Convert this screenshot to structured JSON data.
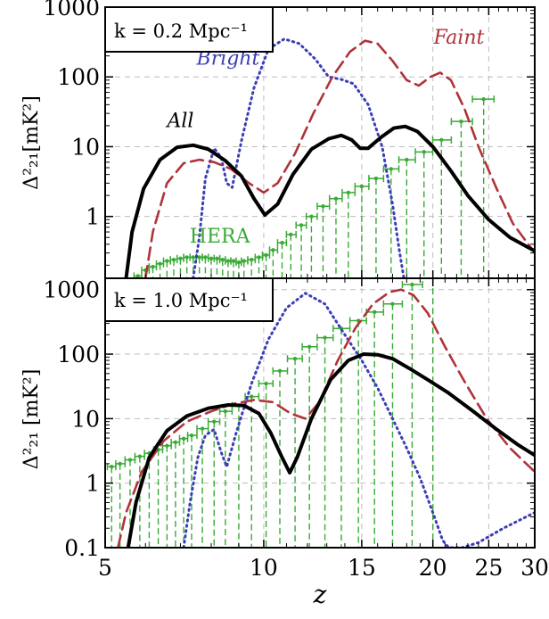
{
  "chart_data": [
    {
      "type": "line",
      "panel": "top",
      "k_label": "k = 0.2 Mpc⁻¹",
      "ylabel": "Δ²₂₁[mK²]",
      "xscale": "log(1+z)",
      "yscale": "log",
      "xlim": [
        5,
        30
      ],
      "ylim": [
        0.13,
        1000
      ],
      "x_ticks": [
        5,
        10,
        15,
        20,
        25,
        30
      ],
      "y_ticks": [
        {
          "value": 1,
          "label": "1"
        },
        {
          "value": 10,
          "label": "10"
        },
        {
          "value": 100,
          "label": "100"
        },
        {
          "value": 1000,
          "label": "1000"
        }
      ],
      "grid": true,
      "series": [
        {
          "name": "Bright",
          "color": "#3b3fb5",
          "style": "dotted",
          "points": [
            [
              7.4,
              0.13
            ],
            [
              7.6,
              0.5
            ],
            [
              7.8,
              3.5
            ],
            [
              8.1,
              9.5
            ],
            [
              8.35,
              7
            ],
            [
              8.55,
              3
            ],
            [
              8.75,
              2.6
            ],
            [
              9.1,
              12
            ],
            [
              9.6,
              70
            ],
            [
              10.2,
              250
            ],
            [
              10.9,
              350
            ],
            [
              11.6,
              300
            ],
            [
              12.4,
              180
            ],
            [
              13.1,
              100
            ],
            [
              13.8,
              92
            ],
            [
              14.5,
              80
            ],
            [
              15.4,
              40
            ],
            [
              16.3,
              10
            ],
            [
              17,
              1.5
            ],
            [
              17.5,
              0.3
            ],
            [
              17.8,
              0.13
            ]
          ]
        },
        {
          "name": "Faint",
          "color": "#b0333a",
          "style": "dashed",
          "points": [
            [
              6.0,
              0.13
            ],
            [
              6.2,
              0.6
            ],
            [
              6.6,
              3
            ],
            [
              7.1,
              5.8
            ],
            [
              7.6,
              6.5
            ],
            [
              8.1,
              6
            ],
            [
              8.7,
              4.8
            ],
            [
              9.4,
              3
            ],
            [
              10,
              2.2
            ],
            [
              10.6,
              3
            ],
            [
              11.4,
              8
            ],
            [
              12.3,
              30
            ],
            [
              13.3,
              100
            ],
            [
              14.3,
              230
            ],
            [
              15.2,
              330
            ],
            [
              16,
              300
            ],
            [
              17,
              170
            ],
            [
              18,
              90
            ],
            [
              18.9,
              75
            ],
            [
              19.8,
              100
            ],
            [
              20.6,
              115
            ],
            [
              21.5,
              90
            ],
            [
              22.7,
              35
            ],
            [
              24,
              10
            ],
            [
              25.8,
              2.5
            ],
            [
              27.5,
              0.8
            ],
            [
              30,
              0.3
            ]
          ]
        },
        {
          "name": "All",
          "color": "#000000",
          "style": "solid",
          "points": [
            [
              5.5,
              0.13
            ],
            [
              5.65,
              0.6
            ],
            [
              5.95,
              2.5
            ],
            [
              6.4,
              6.5
            ],
            [
              6.9,
              9.8
            ],
            [
              7.4,
              10.5
            ],
            [
              7.9,
              9.2
            ],
            [
              8.5,
              6.3
            ],
            [
              9.1,
              3.8
            ],
            [
              9.6,
              1.8
            ],
            [
              10.05,
              1.05
            ],
            [
              10.6,
              1.5
            ],
            [
              11.3,
              4
            ],
            [
              12.2,
              9.2
            ],
            [
              13.1,
              13
            ],
            [
              13.8,
              14.5
            ],
            [
              14.4,
              12.5
            ],
            [
              14.9,
              9.5
            ],
            [
              15.4,
              9.5
            ],
            [
              16.2,
              13.5
            ],
            [
              17.1,
              18.5
            ],
            [
              17.9,
              19.5
            ],
            [
              18.8,
              16.5
            ],
            [
              20,
              10
            ],
            [
              21.5,
              4.5
            ],
            [
              23,
              2
            ],
            [
              25,
              0.9
            ],
            [
              27.2,
              0.5
            ],
            [
              30,
              0.32
            ]
          ]
        }
      ],
      "series_labels": [
        {
          "text": "Bright",
          "x": 8.6,
          "y": 150,
          "color": "#3b3fb5"
        },
        {
          "text": "Faint",
          "x": 22.2,
          "y": 300,
          "color": "#b0333a"
        },
        {
          "text": "All",
          "x": 7.0,
          "y": 19,
          "color": "#000000"
        },
        {
          "text": "HERA",
          "x": 8.3,
          "y": 0.42,
          "color": "#3aaa35"
        }
      ],
      "hera": {
        "color": "#3aaa35",
        "x": [
          5.8,
          6.0,
          6.2,
          6.4,
          6.6,
          6.8,
          7.0,
          7.2,
          7.4,
          7.6,
          7.8,
          8.0,
          8.2,
          8.4,
          8.6,
          8.8,
          9.0,
          9.2,
          9.5,
          9.8,
          10.1,
          10.4,
          10.8,
          11.2,
          11.7,
          12.2,
          12.8,
          13.5,
          14.2,
          15.0,
          15.9,
          16.9,
          18.0,
          19.3,
          20.7,
          22.4,
          24.5
        ],
        "y": [
          0.14,
          0.17,
          0.19,
          0.21,
          0.23,
          0.24,
          0.25,
          0.26,
          0.26,
          0.26,
          0.26,
          0.25,
          0.25,
          0.24,
          0.23,
          0.23,
          0.22,
          0.23,
          0.24,
          0.26,
          0.28,
          0.33,
          0.42,
          0.55,
          0.75,
          1.0,
          1.4,
          1.8,
          2.2,
          2.7,
          3.5,
          4.8,
          6.5,
          8.4,
          12.5,
          23,
          48
        ]
      }
    },
    {
      "type": "line",
      "panel": "bottom",
      "k_label": "k = 1.0 Mpc⁻¹",
      "ylabel": "Δ²₂₁ [mK²]",
      "xlabel": "z",
      "xscale": "log(1+z)",
      "yscale": "log",
      "xlim": [
        5,
        30
      ],
      "ylim": [
        0.1,
        1500
      ],
      "x_ticks": [
        5,
        10,
        15,
        20,
        25,
        30
      ],
      "y_ticks": [
        {
          "value": 0.1,
          "label": "0.1"
        },
        {
          "value": 1,
          "label": "1"
        },
        {
          "value": 10,
          "label": "10"
        },
        {
          "value": 100,
          "label": "100"
        },
        {
          "value": 1000,
          "label": "1000"
        }
      ],
      "grid": true,
      "series": [
        {
          "name": "Bright",
          "color": "#3b3fb5",
          "style": "dotted",
          "points": [
            [
              7.1,
              0.1
            ],
            [
              7.3,
              0.5
            ],
            [
              7.55,
              2.5
            ],
            [
              7.8,
              5.5
            ],
            [
              8.1,
              6.8
            ],
            [
              8.35,
              3
            ],
            [
              8.55,
              1.8
            ],
            [
              8.9,
              6
            ],
            [
              9.5,
              35
            ],
            [
              10.2,
              170
            ],
            [
              11,
              520
            ],
            [
              11.9,
              880
            ],
            [
              12.9,
              600
            ],
            [
              14,
              200
            ],
            [
              15,
              80
            ],
            [
              16,
              30
            ],
            [
              17,
              10
            ],
            [
              18,
              3.5
            ],
            [
              19,
              1.2
            ],
            [
              20,
              0.35
            ],
            [
              20.8,
              0.13
            ],
            [
              21.3,
              0.1
            ],
            [
              22.5,
              0.1
            ],
            [
              24,
              0.12
            ],
            [
              26.5,
              0.2
            ],
            [
              30,
              0.35
            ]
          ]
        },
        {
          "name": "Faint",
          "color": "#b0333a",
          "style": "dashed",
          "points": [
            [
              5.3,
              0.1
            ],
            [
              5.5,
              0.35
            ],
            [
              5.9,
              1.5
            ],
            [
              6.5,
              4.5
            ],
            [
              7.2,
              9
            ],
            [
              8,
              13
            ],
            [
              8.8,
              17
            ],
            [
              9.6,
              19.5
            ],
            [
              10.4,
              18
            ],
            [
              11.2,
              12
            ],
            [
              11.9,
              10
            ],
            [
              12.6,
              18
            ],
            [
              13.6,
              80
            ],
            [
              14.6,
              250
            ],
            [
              15.7,
              600
            ],
            [
              16.8,
              920
            ],
            [
              17.6,
              1000
            ],
            [
              18.5,
              820
            ],
            [
              19.6,
              430
            ],
            [
              21,
              130
            ],
            [
              22.8,
              35
            ],
            [
              24.8,
              10
            ],
            [
              27.2,
              3.5
            ],
            [
              30,
              1.5
            ]
          ]
        },
        {
          "name": "All",
          "color": "#000000",
          "style": "solid",
          "points": [
            [
              5.55,
              0.1
            ],
            [
              5.75,
              0.5
            ],
            [
              6.1,
              2.5
            ],
            [
              6.6,
              6.5
            ],
            [
              7.2,
              11
            ],
            [
              7.9,
              14.5
            ],
            [
              8.6,
              16.3
            ],
            [
              9.2,
              16
            ],
            [
              9.8,
              12
            ],
            [
              10.3,
              6
            ],
            [
              10.8,
              2.5
            ],
            [
              11.15,
              1.45
            ],
            [
              11.5,
              2.5
            ],
            [
              12.2,
              10
            ],
            [
              13.2,
              40
            ],
            [
              14.2,
              80
            ],
            [
              15.1,
              100
            ],
            [
              16,
              98
            ],
            [
              17,
              85
            ],
            [
              18.2,
              60
            ],
            [
              19.6,
              40
            ],
            [
              21.3,
              25
            ],
            [
              23.5,
              13
            ],
            [
              25.7,
              7
            ],
            [
              28,
              4
            ],
            [
              30,
              2.7
            ]
          ]
        }
      ],
      "series_labels": [],
      "hera": {
        "color": "#3aaa35",
        "x": [
          5.15,
          5.35,
          5.6,
          5.85,
          6.1,
          6.35,
          6.6,
          6.85,
          7.1,
          7.35,
          7.7,
          8.1,
          8.5,
          9.0,
          9.5,
          10.1,
          10.7,
          11.4,
          12.1,
          12.9,
          13.8,
          14.8,
          15.8,
          17,
          18.4,
          20
        ],
        "y": [
          1.8,
          2.0,
          2.3,
          2.6,
          2.9,
          3.3,
          3.8,
          4.3,
          4.9,
          5.5,
          7,
          9,
          13,
          16,
          22,
          35,
          55,
          85,
          130,
          180,
          250,
          330,
          450,
          600,
          1200,
          3000
        ]
      }
    }
  ]
}
